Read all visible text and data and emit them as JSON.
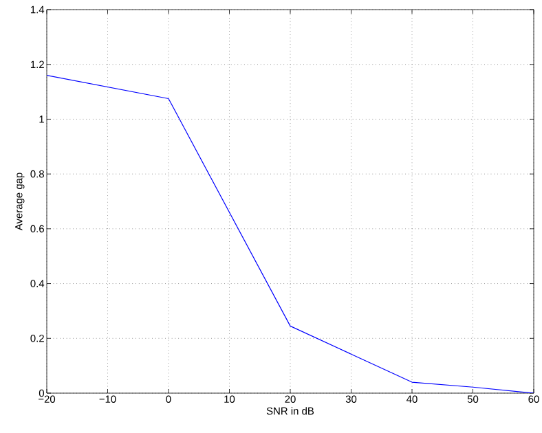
{
  "chart_data": {
    "type": "line",
    "xlabel": "SNR in dB",
    "ylabel": "Average gap",
    "x": [
      -20,
      0,
      20,
      40,
      50,
      60
    ],
    "series": [
      {
        "color": "#0000ff",
        "values": [
          1.16,
          1.075,
          0.245,
          0.04,
          0.022,
          0
        ]
      }
    ],
    "xlim": [
      -20,
      60
    ],
    "xticks": [
      {
        "value": -20,
        "label": "−20"
      },
      {
        "value": -10,
        "label": "−10"
      },
      0,
      10,
      20,
      30,
      40,
      50,
      60
    ],
    "ylim": [
      0,
      1.4
    ],
    "yticks": [
      0,
      0.2,
      0.4,
      0.6,
      0.8,
      1,
      1.2,
      1.4
    ],
    "grid": true,
    "line_style": "solid",
    "marker": "none"
  }
}
